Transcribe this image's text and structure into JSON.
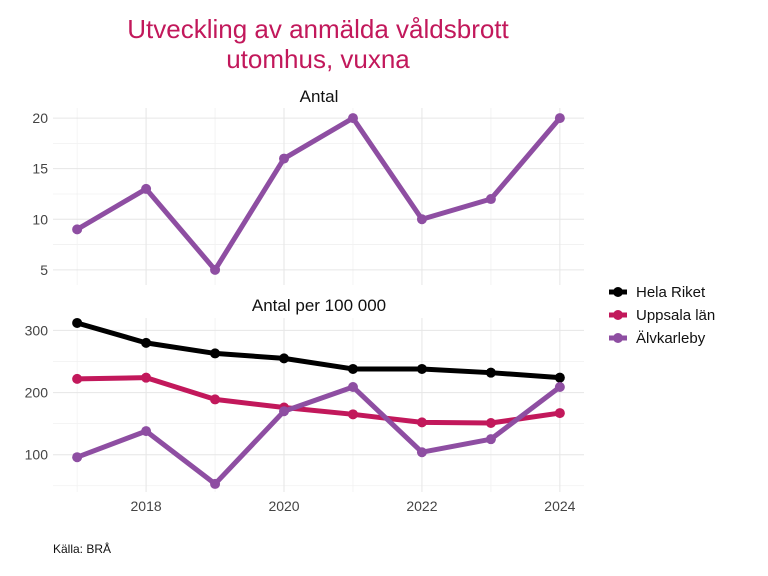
{
  "chart_data": {
    "type": "line",
    "title_lines": [
      "Utveckling av anmälda våldsbrott",
      "utomhus, vuxna"
    ],
    "source": "Källa: BRÅ",
    "x": [
      2017,
      2018,
      2019,
      2020,
      2021,
      2022,
      2023,
      2024
    ],
    "x_ticks": [
      2018,
      2020,
      2022,
      2024
    ],
    "legend": [
      "Hela Riket",
      "Uppsala län",
      "Älvkarleby"
    ],
    "colors": {
      "Hela Riket": "#000000",
      "Uppsala län": "#c2185b",
      "Älvkarleby": "#8e4ea2",
      "title": "#c2185b"
    },
    "panels": [
      {
        "title": "Antal",
        "ylim": [
          3.5,
          21
        ],
        "y_ticks": [
          5,
          10,
          15,
          20
        ],
        "series": [
          {
            "name": "Älvkarleby",
            "values": [
              9,
              13,
              5,
              16,
              20,
              10,
              12,
              20
            ]
          }
        ]
      },
      {
        "title": "Antal per 100 000",
        "ylim": [
          40,
          320
        ],
        "y_ticks": [
          100,
          200,
          300
        ],
        "series": [
          {
            "name": "Hela Riket",
            "values": [
              312,
              280,
              263,
              255,
              238,
              238,
              232,
              224
            ]
          },
          {
            "name": "Uppsala län",
            "values": [
              222,
              224,
              189,
              176,
              165,
              152,
              151,
              167
            ]
          },
          {
            "name": "Älvkarleby",
            "values": [
              96,
              138,
              53,
              170,
              209,
              104,
              125,
              209
            ]
          }
        ]
      }
    ]
  }
}
